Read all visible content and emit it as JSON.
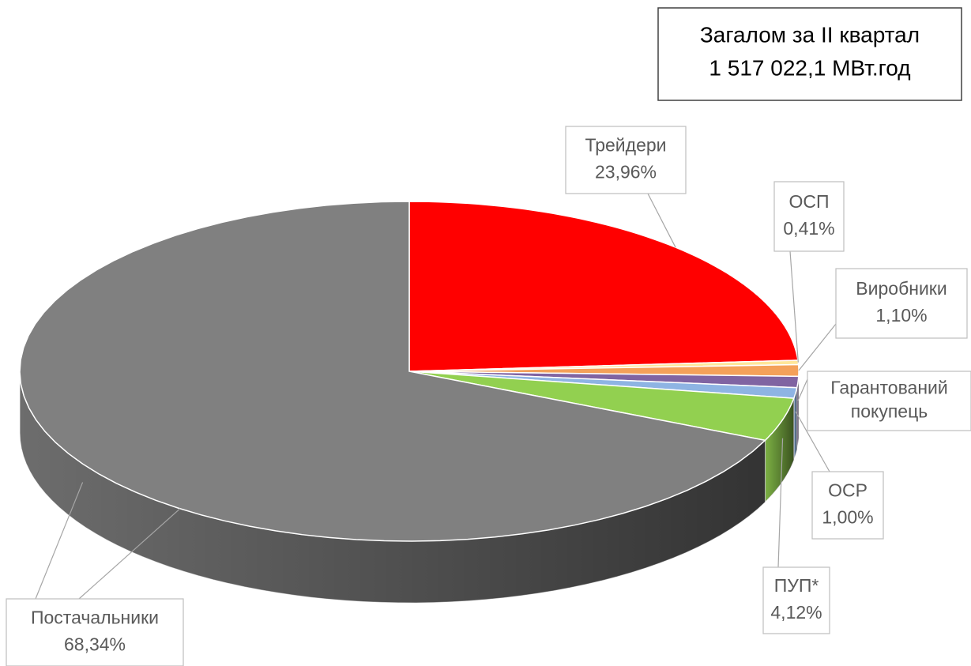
{
  "chart_data": {
    "type": "pie",
    "annotation": [
      "Загалом за II квартал",
      "1 517 022,1 МВт.год"
    ],
    "categories": [
      "Трейдери",
      "ОСП",
      "Виробники",
      "Гарантований покупець",
      "ОСР",
      "ПУП*",
      "Постачальники"
    ],
    "values": [
      23.96,
      0.41,
      1.1,
      1.07,
      1.0,
      4.12,
      68.34
    ],
    "value_labels": [
      "23,96%",
      "0,41%",
      "1,10%",
      null,
      "1,00%",
      "4,12%",
      "68,34%"
    ],
    "colors": [
      "#ff0000",
      "#ffe699",
      "#f4a15a",
      "#8064a2",
      "#8eb4e3",
      "#92d050",
      "#808080"
    ]
  }
}
